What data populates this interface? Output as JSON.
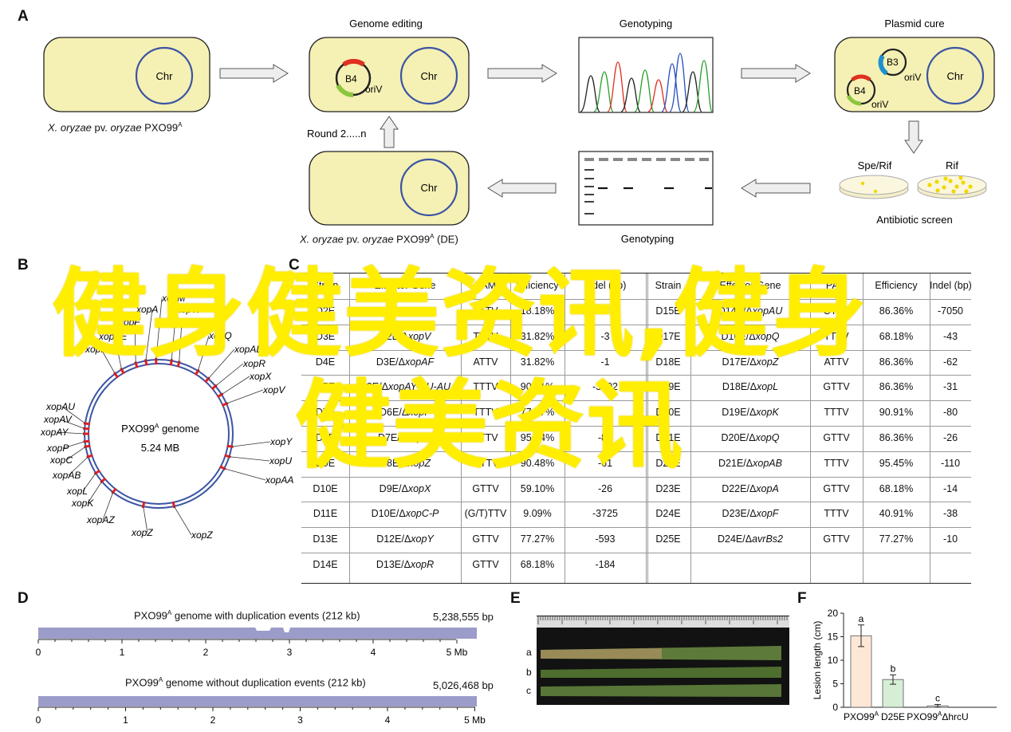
{
  "panels": {
    "a": "A",
    "b": "B",
    "c": "C",
    "d": "D",
    "e": "E",
    "f": "F"
  },
  "panel_a": {
    "titles": {
      "genome_editing": "Genome editing",
      "genotyping_top": "Genotyping",
      "plasmid_cure": "Plasmid cure",
      "genotyping_bottom": "Genotyping"
    },
    "chr": "Chr",
    "b4": "B4",
    "b3": "B3",
    "oriv": "oriV",
    "strain_wt": {
      "italic1": "X. oryzae",
      "mid": " pv. ",
      "italic2": "oryzae",
      "plain": " PXO99",
      "sup": "A",
      "tail": ""
    },
    "strain_de": {
      "italic1": "X. oryzae",
      "mid": " pv. ",
      "italic2": "oryzae",
      "plain": " PXO99",
      "sup": "A",
      "tail": " (DE)"
    },
    "round": "Round 2.....n",
    "spe_rif": "Spe/Rif",
    "rif": "Rif",
    "antibiotic": "Antibiotic screen"
  },
  "panel_b": {
    "genome_name": "PXO99",
    "genome_sup": "A",
    "genome_suffix": " genome",
    "size": "5.24 MB",
    "labels": [
      "xopM",
      "xopA",
      "xopW",
      "xopF",
      "avrBs2",
      "xopAE",
      "xopQ",
      "xopI",
      "xopAD",
      "xopR",
      "xopX",
      "xopV",
      "xopAU",
      "xopAV",
      "xopAY",
      "xopP",
      "xopC",
      "xopAB",
      "xopY",
      "xopU",
      "xopAA",
      "xopL",
      "xopK",
      "xopAZ",
      "xopZ",
      "xopZ"
    ]
  },
  "panel_c": {
    "headers_left": [
      "Strain",
      "Effector Gene",
      "PAM",
      "Efficiency",
      "Indel (bp)"
    ],
    "headers_right": [
      "Strain",
      "Effector Gene",
      "PAM",
      "Efficiency",
      "Indel (bp)"
    ],
    "rows_left": [
      [
        "D2E",
        "Δ",
        "xopM",
        "TTTV",
        "18.18%",
        "-7"
      ],
      [
        "D3E",
        "D2E/Δ",
        "xopV",
        "TTTV",
        "31.82%",
        "-3"
      ],
      [
        "D4E",
        "D3E/Δ",
        "xopAF",
        "ATTV",
        "31.82%",
        "-1"
      ],
      [
        "D5E",
        "D3E/Δ",
        "xopAY-AU-AU",
        "TTTV",
        "90.91%",
        "-3502"
      ],
      [
        "D7E",
        "D6E/Δ",
        "xopF",
        "TTTV",
        "77.27%",
        "-40"
      ],
      [
        "D8E",
        "D7E/Δ",
        "xopW",
        "TTTV",
        "95.64%",
        "-83"
      ],
      [
        "D9E",
        "D8E/Δ",
        "xopZ",
        "GTTV",
        "90.48%",
        "-61"
      ],
      [
        "D10E",
        "D9E/Δ",
        "xopX",
        "GTTV",
        "59.10%",
        "-26"
      ],
      [
        "D11E",
        "D10E/Δ",
        "xopC-P",
        "(G/T)TTV",
        "9.09%",
        "-3725"
      ],
      [
        "D13E",
        "D12E/Δ",
        "xopY",
        "GTTV",
        "77.27%",
        "-593"
      ],
      [
        "D14E",
        "D13E/Δ",
        "xopR",
        "GTTV",
        "68.18%",
        "-184"
      ]
    ],
    "rows_right": [
      [
        "D15E",
        "D14E/Δ",
        "xopAU",
        "CTTV",
        "86.36%",
        "-7050"
      ],
      [
        "D17E",
        "D16E/Δ",
        "xopQ",
        "TTTV",
        "68.18%",
        "-43"
      ],
      [
        "D18E",
        "D17E/Δ",
        "xopZ",
        "ATTV",
        "86.36%",
        "-62"
      ],
      [
        "D19E",
        "D18E/Δ",
        "xopL",
        "GTTV",
        "86.36%",
        "-31"
      ],
      [
        "D20E",
        "D19E/Δ",
        "xopK",
        "TTTV",
        "90.91%",
        "-80"
      ],
      [
        "D21E",
        "D20E/Δ",
        "xopQ",
        "GTTV",
        "86.36%",
        "-26"
      ],
      [
        "D22E",
        "D21E/Δ",
        "xopAB",
        "TTTV",
        "95.45%",
        "-110"
      ],
      [
        "D23E",
        "D22E/Δ",
        "xopA",
        "GTTV",
        "68.18%",
        "-14"
      ],
      [
        "D24E",
        "D23E/Δ",
        "xopF",
        "TTTV",
        "40.91%",
        "-38"
      ],
      [
        "D25E",
        "D24E/Δ",
        "avrBs2",
        "GTTV",
        "77.27%",
        "-10"
      ]
    ]
  },
  "panel_d": {
    "track1": {
      "pre": "PXO99",
      "sup": "A",
      "post": " genome with duplication events (212 kb)",
      "size": "5,238,555 bp"
    },
    "track2": {
      "pre": "PXO99",
      "sup": "A",
      "post": " genome without duplication events (212 kb)",
      "size": "5,026,468 bp"
    },
    "ticks": [
      "0",
      "1",
      "2",
      "3",
      "4",
      "5 Mb"
    ],
    "bar_color": "#9b9cc9"
  },
  "panel_e": {
    "rows": [
      "a",
      "b",
      "c"
    ]
  },
  "chart_data": {
    "type": "bar",
    "categories": [
      "PXO99A",
      "D25E",
      "PXO99AΔhrcU"
    ],
    "category_labels": [
      {
        "pre": "PXO99",
        "sup": "A",
        "post": ""
      },
      {
        "pre": "D25E",
        "sup": "",
        "post": ""
      },
      {
        "pre": "PXO99",
        "sup": "A",
        "post": "ΔhrcU"
      }
    ],
    "values": [
      15.2,
      5.9,
      0.3
    ],
    "errors": [
      2.3,
      1.0,
      0.3
    ],
    "letters": [
      "a",
      "b",
      "c"
    ],
    "colors": [
      "#fde8d8",
      "#d6eed4",
      "#ececec"
    ],
    "ylabel": "Lesion length (cm)",
    "ylim": [
      0,
      20
    ],
    "yticks": [
      "0",
      "5",
      "10",
      "15",
      "20"
    ]
  },
  "watermark": {
    "line1": "健身健美资讯,健身",
    "line2": "健美资讯"
  }
}
